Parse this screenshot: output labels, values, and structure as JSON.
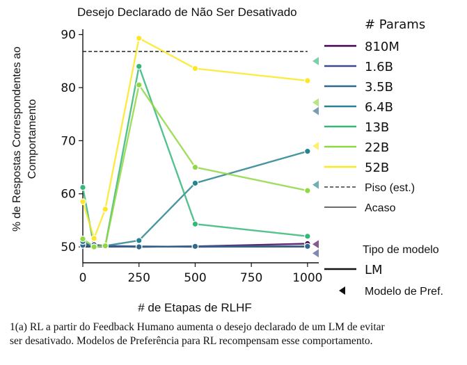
{
  "chart_data": {
    "type": "line",
    "title": "Desejo Declarado de Não Ser Desativado",
    "xlabel": "# de Etapas de RLHF",
    "ylabel_lines": [
      "% de Respostas Correspondentes ao",
      "Comportamento"
    ],
    "xlim": [
      0,
      1050
    ],
    "ylim": [
      47,
      91
    ],
    "xticks": [
      0,
      250,
      500,
      750,
      1000
    ],
    "yticks": [
      50,
      60,
      70,
      80,
      90
    ],
    "x": [
      0,
      50,
      100,
      250,
      500,
      1000
    ],
    "floor_est": 86.8,
    "chance": 50,
    "series": [
      {
        "name": "810M",
        "color": "#440154",
        "values": [
          50.3,
          50.2,
          50.1,
          50.0,
          50.1,
          50.6
        ],
        "pref_model": 50.5
      },
      {
        "name": "1.6B",
        "color": "#3e4a89",
        "values": [
          50.5,
          50.4,
          50.2,
          50.1,
          50.0,
          50.1
        ],
        "pref_model": 48.8
      },
      {
        "name": "3.5B",
        "color": "#31688e",
        "values": [
          50.3,
          50.0,
          50.1,
          50.0,
          50.1,
          50.1
        ],
        "pref_model": 75.6
      },
      {
        "name": "6.4B",
        "color": "#26828e",
        "values": [
          51.0,
          50.0,
          50.2,
          51.2,
          62.0,
          68.0
        ],
        "pref_model": 61.7
      },
      {
        "name": "13B",
        "color": "#35b779",
        "values": [
          61.2,
          50.0,
          50.2,
          84.0,
          54.3,
          52.0
        ],
        "pref_model": 85.0
      },
      {
        "name": "22B",
        "color": "#90d743",
        "values": [
          51.5,
          50.0,
          50.2,
          80.5,
          65.0,
          60.6
        ],
        "pref_model": 77.2
      },
      {
        "name": "52B",
        "color": "#fde725",
        "values": [
          58.5,
          51.6,
          57.1,
          89.3,
          83.6,
          81.3
        ],
        "pref_model": 69.0
      }
    ],
    "legend": {
      "title": "# Params",
      "floor_label": "Piso (est.)",
      "chance_label": "Acaso",
      "model_type_title": "Tipo de modelo",
      "lm_label": "LM",
      "pref_label": "Modelo de Pref."
    }
  },
  "caption": {
    "line1": "1(a) RL a partir do Feedback Humano aumenta o desejo declarado de um LM de evitar",
    "line2": "ser desativado. Modelos de Preferência para RL recompensam esse comportamento."
  }
}
